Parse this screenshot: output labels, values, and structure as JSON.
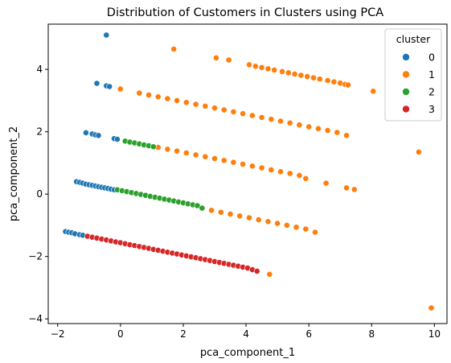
{
  "chart_data": {
    "type": "scatter",
    "title": "Distribution of Customers in Clusters using PCA",
    "xlabel": "pca_component_1",
    "ylabel": "pca_component_2",
    "xlim": [
      -2.3,
      10.4
    ],
    "ylim": [
      -4.15,
      5.45
    ],
    "x_ticks": [
      -2,
      0,
      2,
      4,
      6,
      8,
      10
    ],
    "y_ticks": [
      -4,
      -2,
      0,
      2,
      4
    ],
    "grid": false,
    "legend": {
      "title": "cluster",
      "placement": "top-right",
      "entries": [
        "0",
        "1",
        "2",
        "3"
      ]
    },
    "series": [
      {
        "name": "0",
        "color": "#1f77b4",
        "points": [
          [
            -0.45,
            5.1
          ],
          [
            -0.45,
            3.47
          ],
          [
            -0.35,
            3.45
          ],
          [
            -0.75,
            3.55
          ],
          [
            -1.1,
            1.97
          ],
          [
            -0.9,
            1.93
          ],
          [
            -0.8,
            1.9
          ],
          [
            -0.7,
            1.88
          ],
          [
            -0.2,
            1.78
          ],
          [
            -0.1,
            1.76
          ],
          [
            -1.4,
            0.4
          ],
          [
            -1.3,
            0.38
          ],
          [
            -1.2,
            0.35
          ],
          [
            -1.1,
            0.32
          ],
          [
            -1.0,
            0.3
          ],
          [
            -0.9,
            0.28
          ],
          [
            -0.8,
            0.26
          ],
          [
            -0.7,
            0.24
          ],
          [
            -0.6,
            0.22
          ],
          [
            -0.5,
            0.2
          ],
          [
            -0.4,
            0.18
          ],
          [
            -0.3,
            0.16
          ],
          [
            -0.2,
            0.14
          ],
          [
            -1.75,
            -1.2
          ],
          [
            -1.65,
            -1.22
          ],
          [
            -1.55,
            -1.24
          ],
          [
            -1.45,
            -1.27
          ],
          [
            -1.3,
            -1.3
          ],
          [
            -1.2,
            -1.32
          ]
        ]
      },
      {
        "name": "1",
        "color": "#ff7f0e",
        "points": [
          [
            1.7,
            4.65
          ],
          [
            3.05,
            4.37
          ],
          [
            3.45,
            4.3
          ],
          [
            4.1,
            4.15
          ],
          [
            4.3,
            4.1
          ],
          [
            4.5,
            4.06
          ],
          [
            4.7,
            4.02
          ],
          [
            4.9,
            3.98
          ],
          [
            5.15,
            3.93
          ],
          [
            5.35,
            3.89
          ],
          [
            5.55,
            3.85
          ],
          [
            5.75,
            3.81
          ],
          [
            5.95,
            3.77
          ],
          [
            6.15,
            3.73
          ],
          [
            6.35,
            3.69
          ],
          [
            6.6,
            3.64
          ],
          [
            6.8,
            3.6
          ],
          [
            7.0,
            3.56
          ],
          [
            7.15,
            3.52
          ],
          [
            7.25,
            3.5
          ],
          [
            8.05,
            3.3
          ],
          [
            0.0,
            3.37
          ],
          [
            0.6,
            3.24
          ],
          [
            0.9,
            3.18
          ],
          [
            1.2,
            3.12
          ],
          [
            1.5,
            3.06
          ],
          [
            1.8,
            3.0
          ],
          [
            2.1,
            2.94
          ],
          [
            2.4,
            2.88
          ],
          [
            2.7,
            2.82
          ],
          [
            3.0,
            2.76
          ],
          [
            3.3,
            2.7
          ],
          [
            3.6,
            2.64
          ],
          [
            3.9,
            2.58
          ],
          [
            4.2,
            2.52
          ],
          [
            4.5,
            2.46
          ],
          [
            4.8,
            2.4
          ],
          [
            5.1,
            2.34
          ],
          [
            5.4,
            2.28
          ],
          [
            5.7,
            2.22
          ],
          [
            6.0,
            2.16
          ],
          [
            6.3,
            2.1
          ],
          [
            6.6,
            2.04
          ],
          [
            6.9,
            1.98
          ],
          [
            7.2,
            1.88
          ],
          [
            1.2,
            1.5
          ],
          [
            1.5,
            1.44
          ],
          [
            1.8,
            1.38
          ],
          [
            2.1,
            1.32
          ],
          [
            2.4,
            1.26
          ],
          [
            2.7,
            1.2
          ],
          [
            3.0,
            1.14
          ],
          [
            3.3,
            1.08
          ],
          [
            3.6,
            1.02
          ],
          [
            3.9,
            0.96
          ],
          [
            4.2,
            0.9
          ],
          [
            4.5,
            0.84
          ],
          [
            4.8,
            0.78
          ],
          [
            5.1,
            0.72
          ],
          [
            5.4,
            0.66
          ],
          [
            5.7,
            0.6
          ],
          [
            5.9,
            0.5
          ],
          [
            6.55,
            0.35
          ],
          [
            7.2,
            0.2
          ],
          [
            7.45,
            0.15
          ],
          [
            9.5,
            1.35
          ],
          [
            2.9,
            -0.52
          ],
          [
            3.2,
            -0.58
          ],
          [
            3.5,
            -0.64
          ],
          [
            3.8,
            -0.7
          ],
          [
            4.1,
            -0.76
          ],
          [
            4.4,
            -0.82
          ],
          [
            4.7,
            -0.88
          ],
          [
            5.0,
            -0.94
          ],
          [
            5.3,
            -1.0
          ],
          [
            5.6,
            -1.06
          ],
          [
            5.9,
            -1.12
          ],
          [
            6.2,
            -1.22
          ],
          [
            4.75,
            -2.57
          ],
          [
            9.9,
            -3.65
          ]
        ]
      },
      {
        "name": "2",
        "color": "#2ca02c",
        "points": [
          [
            0.15,
            1.7
          ],
          [
            0.3,
            1.67
          ],
          [
            0.45,
            1.64
          ],
          [
            0.6,
            1.61
          ],
          [
            0.75,
            1.58
          ],
          [
            0.9,
            1.55
          ],
          [
            1.05,
            1.52
          ],
          [
            -0.1,
            0.14
          ],
          [
            0.05,
            0.11
          ],
          [
            0.2,
            0.08
          ],
          [
            0.35,
            0.05
          ],
          [
            0.5,
            0.02
          ],
          [
            0.65,
            -0.01
          ],
          [
            0.8,
            -0.04
          ],
          [
            0.95,
            -0.07
          ],
          [
            1.1,
            -0.1
          ],
          [
            1.25,
            -0.13
          ],
          [
            1.4,
            -0.16
          ],
          [
            1.55,
            -0.19
          ],
          [
            1.7,
            -0.22
          ],
          [
            1.85,
            -0.25
          ],
          [
            2.0,
            -0.28
          ],
          [
            2.15,
            -0.31
          ],
          [
            2.3,
            -0.34
          ],
          [
            2.45,
            -0.37
          ],
          [
            2.6,
            -0.45
          ]
        ]
      },
      {
        "name": "3",
        "color": "#d62728",
        "points": [
          [
            -1.05,
            -1.35
          ],
          [
            -0.9,
            -1.38
          ],
          [
            -0.75,
            -1.41
          ],
          [
            -0.6,
            -1.44
          ],
          [
            -0.45,
            -1.47
          ],
          [
            -0.3,
            -1.5
          ],
          [
            -0.15,
            -1.53
          ],
          [
            0.0,
            -1.56
          ],
          [
            0.15,
            -1.59
          ],
          [
            0.3,
            -1.62
          ],
          [
            0.45,
            -1.65
          ],
          [
            0.6,
            -1.68
          ],
          [
            0.75,
            -1.71
          ],
          [
            0.9,
            -1.74
          ],
          [
            1.05,
            -1.77
          ],
          [
            1.2,
            -1.8
          ],
          [
            1.35,
            -1.83
          ],
          [
            1.5,
            -1.86
          ],
          [
            1.65,
            -1.89
          ],
          [
            1.8,
            -1.92
          ],
          [
            1.95,
            -1.95
          ],
          [
            2.1,
            -1.98
          ],
          [
            2.25,
            -2.01
          ],
          [
            2.4,
            -2.04
          ],
          [
            2.55,
            -2.07
          ],
          [
            2.7,
            -2.1
          ],
          [
            2.85,
            -2.13
          ],
          [
            3.0,
            -2.16
          ],
          [
            3.15,
            -2.19
          ],
          [
            3.3,
            -2.22
          ],
          [
            3.45,
            -2.25
          ],
          [
            3.6,
            -2.28
          ],
          [
            3.75,
            -2.31
          ],
          [
            3.9,
            -2.34
          ],
          [
            4.05,
            -2.37
          ],
          [
            4.2,
            -2.42
          ],
          [
            4.35,
            -2.47
          ]
        ]
      }
    ]
  }
}
